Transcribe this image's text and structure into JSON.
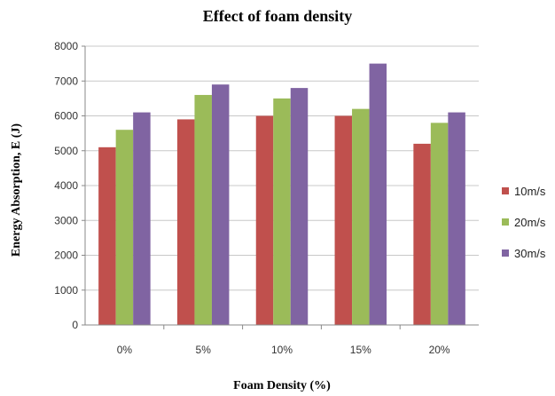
{
  "chart_data": {
    "type": "bar",
    "title": "Effect of foam density",
    "xlabel": "Foam Density (%)",
    "ylabel": "Energy Absorption, E (J)",
    "categories": [
      "0%",
      "5%",
      "10%",
      "15%",
      "20%"
    ],
    "ylim": [
      0,
      8000
    ],
    "yticks": [
      0,
      1000,
      2000,
      3000,
      4000,
      5000,
      6000,
      7000,
      8000
    ],
    "grid": true,
    "legend_position": "right",
    "series": [
      {
        "name": "10m/s",
        "color": "#C0504D",
        "values": [
          5100,
          5900,
          6000,
          6000,
          5200
        ]
      },
      {
        "name": "20m/s",
        "color": "#9BBB59",
        "values": [
          5600,
          6600,
          6500,
          6200,
          5800
        ]
      },
      {
        "name": "30m/s",
        "color": "#8064A2",
        "values": [
          6100,
          6900,
          6800,
          7500,
          6100
        ]
      }
    ]
  }
}
